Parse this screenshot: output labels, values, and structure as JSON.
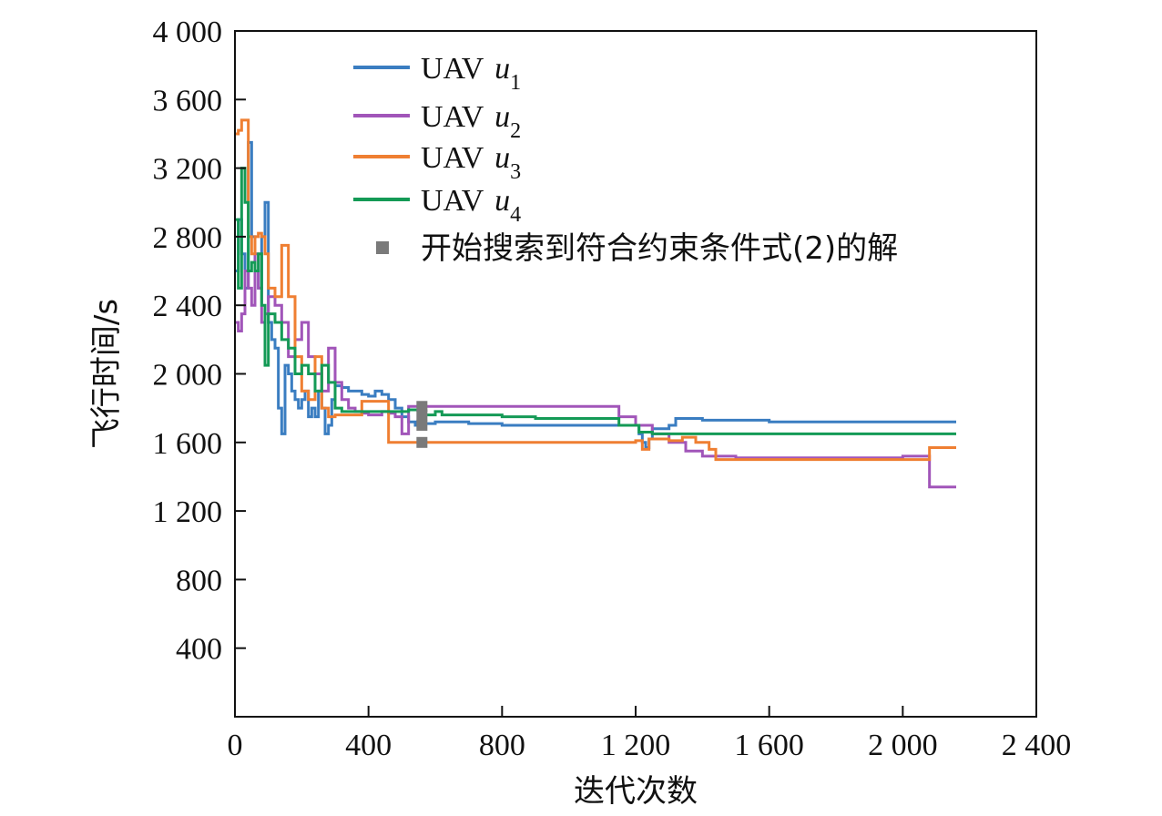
{
  "chart_data": {
    "type": "line",
    "xlabel": "迭代次数",
    "ylabel": "飞行时间/s",
    "xlim": [
      0,
      2400
    ],
    "ylim": [
      0,
      4000
    ],
    "xticks": [
      0,
      400,
      800,
      1200,
      1600,
      2000,
      2400
    ],
    "yticks": [
      400,
      800,
      1200,
      1600,
      2000,
      2400,
      2800,
      3200,
      3600,
      4000
    ],
    "xtick_labels": [
      "0",
      "400",
      "800",
      "1 200",
      "1 600",
      "2 000",
      "2 400"
    ],
    "ytick_labels": [
      "400",
      "800",
      "1 200",
      "1 600",
      "2 000",
      "2 400",
      "2 800",
      "3 200",
      "3 600",
      "4 000"
    ],
    "grid": false,
    "legend_position": "top-right",
    "series": [
      {
        "name": "UAV u1",
        "label_main": "UAV ",
        "label_var": "u",
        "label_sub": "1",
        "color": "#3a7dc1",
        "x": [
          0,
          10,
          20,
          30,
          40,
          50,
          60,
          70,
          80,
          90,
          100,
          110,
          120,
          130,
          140,
          150,
          160,
          170,
          180,
          190,
          200,
          210,
          220,
          230,
          240,
          250,
          260,
          270,
          280,
          290,
          300,
          320,
          340,
          360,
          380,
          400,
          420,
          440,
          460,
          480,
          500,
          520,
          540,
          560,
          600,
          700,
          800,
          900,
          1000,
          1100,
          1200,
          1210,
          1220,
          1230,
          1240,
          1250,
          1300,
          1320,
          1400,
          1600,
          1800,
          2000,
          2160
        ],
        "y": [
          2600,
          2900,
          2700,
          2500,
          3350,
          2800,
          2600,
          2500,
          2800,
          3000,
          2300,
          2200,
          2150,
          1800,
          1650,
          2050,
          2000,
          1900,
          1850,
          1800,
          1850,
          1900,
          1750,
          1800,
          1750,
          1900,
          1800,
          1650,
          1700,
          1850,
          1930,
          1920,
          1900,
          1900,
          1880,
          1870,
          1900,
          1880,
          1850,
          1800,
          1750,
          1720,
          1700,
          1710,
          1720,
          1710,
          1700,
          1700,
          1700,
          1700,
          1700,
          1650,
          1600,
          1570,
          1620,
          1680,
          1700,
          1740,
          1730,
          1720,
          1720,
          1720,
          1720
        ]
      },
      {
        "name": "UAV u2",
        "label_main": "UAV ",
        "label_var": "u",
        "label_sub": "2",
        "color": "#a155b9",
        "x": [
          0,
          10,
          20,
          30,
          40,
          50,
          60,
          70,
          80,
          90,
          100,
          120,
          140,
          160,
          180,
          200,
          220,
          240,
          260,
          280,
          300,
          320,
          340,
          360,
          380,
          400,
          420,
          440,
          460,
          480,
          500,
          520,
          560,
          600,
          700,
          800,
          900,
          1000,
          1100,
          1150,
          1200,
          1250,
          1300,
          1350,
          1400,
          1500,
          1600,
          1700,
          1800,
          1900,
          2000,
          2060,
          2080,
          2100,
          2160
        ],
        "y": [
          2300,
          2250,
          2350,
          2600,
          2500,
          2400,
          2700,
          2500,
          2300,
          2350,
          2450,
          2400,
          2300,
          2100,
          2200,
          2300,
          2100,
          2000,
          1900,
          2150,
          1950,
          1850,
          1800,
          1780,
          1770,
          1760,
          1760,
          1780,
          1770,
          1750,
          1650,
          1810,
          1810,
          1810,
          1810,
          1810,
          1810,
          1810,
          1810,
          1750,
          1700,
          1650,
          1600,
          1550,
          1520,
          1510,
          1510,
          1510,
          1510,
          1510,
          1520,
          1520,
          1340,
          1340,
          1340
        ]
      },
      {
        "name": "UAV u3",
        "label_main": "UAV ",
        "label_var": "u",
        "label_sub": "3",
        "color": "#ef7f32",
        "x": [
          0,
          10,
          20,
          30,
          40,
          50,
          60,
          70,
          80,
          90,
          100,
          120,
          140,
          160,
          180,
          200,
          220,
          240,
          260,
          280,
          300,
          320,
          340,
          360,
          380,
          400,
          420,
          440,
          460,
          500,
          600,
          700,
          800,
          900,
          1000,
          1100,
          1200,
          1220,
          1240,
          1300,
          1340,
          1380,
          1420,
          1440,
          1500,
          1600,
          1700,
          1800,
          1900,
          2000,
          2060,
          2080,
          2100,
          2160
        ],
        "y": [
          3400,
          3420,
          3480,
          3480,
          2800,
          2700,
          2800,
          2820,
          2800,
          2700,
          2500,
          2450,
          2750,
          2450,
          2100,
          1900,
          1850,
          2100,
          1800,
          1750,
          1760,
          1760,
          1760,
          1760,
          1840,
          1840,
          1840,
          1840,
          1600,
          1600,
          1600,
          1600,
          1600,
          1600,
          1600,
          1600,
          1610,
          1560,
          1620,
          1610,
          1630,
          1600,
          1560,
          1500,
          1500,
          1500,
          1500,
          1500,
          1500,
          1500,
          1500,
          1570,
          1570,
          1570
        ]
      },
      {
        "name": "UAV u4",
        "label_main": "UAV ",
        "label_var": "u",
        "label_sub": "4",
        "color": "#149a56",
        "x": [
          0,
          10,
          20,
          30,
          40,
          50,
          60,
          70,
          80,
          90,
          100,
          120,
          140,
          160,
          180,
          200,
          220,
          240,
          260,
          280,
          300,
          320,
          340,
          360,
          400,
          440,
          480,
          520,
          560,
          600,
          620,
          700,
          800,
          900,
          1000,
          1100,
          1150,
          1200,
          1210,
          1250,
          1300,
          1400,
          1600,
          1800,
          2000,
          2160
        ],
        "y": [
          2900,
          2500,
          3200,
          3000,
          2600,
          2650,
          2600,
          2700,
          2400,
          2050,
          2350,
          2300,
          2200,
          2150,
          2000,
          2050,
          2000,
          1900,
          2050,
          1950,
          1800,
          1780,
          1780,
          1780,
          1780,
          1780,
          1780,
          1790,
          1760,
          1780,
          1760,
          1760,
          1750,
          1740,
          1740,
          1740,
          1700,
          1700,
          1660,
          1650,
          1650,
          1650,
          1650,
          1650,
          1650,
          1650
        ]
      }
    ],
    "markers": {
      "label": "开始搜索到符合约束条件式(2)的解",
      "color": "#7a7a7a",
      "points": [
        {
          "x": 560,
          "y": 1810
        },
        {
          "x": 560,
          "y": 1760
        },
        {
          "x": 560,
          "y": 1700
        },
        {
          "x": 560,
          "y": 1600
        }
      ]
    }
  }
}
